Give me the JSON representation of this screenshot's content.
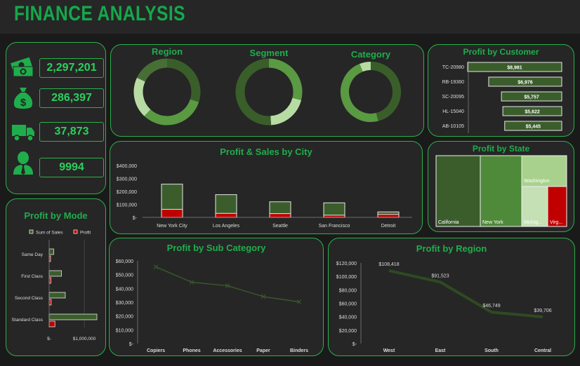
{
  "dashboard_title": "FINANCE ANALYSIS",
  "kpis": [
    {
      "icon": "money-bills-icon",
      "value": "2,297,201"
    },
    {
      "icon": "money-bag-icon",
      "value": "286,397"
    },
    {
      "icon": "delivery-truck-icon",
      "value": "37,873"
    },
    {
      "icon": "person-icon",
      "value": "9994"
    }
  ],
  "donuts": {
    "labels": {
      "region": "Region",
      "segment": "Segment",
      "category": "Category"
    },
    "colors": [
      "#3a5e2a",
      "#5a9a42",
      "#b7dba3",
      "#476f35"
    ]
  },
  "profit_by_customer": {
    "title": "Profit by Customer",
    "customers": [
      "TC-20980",
      "RB-19360",
      "SC-20095",
      "HL-15040",
      "AB-10105"
    ],
    "values": [
      8981,
      6976,
      5757,
      5622,
      5445
    ],
    "labels": [
      "$8,981",
      "$6,976",
      "$5,757",
      "$5,622",
      "$5,445"
    ]
  },
  "profit_by_mode": {
    "title": "Profit by Mode",
    "legend": [
      "Sum of Sales",
      "Profit"
    ],
    "modes": [
      "Same Day",
      "First Class",
      "Second Class",
      "Standard Class"
    ],
    "sales": [
      128000,
      351000,
      459000,
      1359000
    ],
    "profit": [
      16000,
      49000,
      57000,
      164000
    ],
    "ticks": [
      "$-",
      "$1,000,000"
    ]
  },
  "profit_sales_by_city": {
    "title": "Profit & Sales by City",
    "categories": [
      "New York City",
      "Los Angeles",
      "Seattle",
      "San Francisco",
      "Detroit"
    ],
    "sales": [
      256000,
      175000,
      120000,
      112000,
      42000
    ],
    "profit": [
      62000,
      31000,
      29000,
      17000,
      23000
    ],
    "yticks": [
      "$400,000",
      "$300,000",
      "$200,000",
      "$100,000",
      "$-"
    ]
  },
  "profit_by_state": {
    "title": "Profit by State",
    "states": [
      "California",
      "New York",
      "Washington",
      "Michigan",
      "Virginia"
    ],
    "labels": [
      "California",
      "New York",
      "Washington",
      "Michig...",
      "Virg..."
    ],
    "colors": [
      "#3b5d2c",
      "#4f8a3a",
      "#a9d18e",
      "#c5e0b4",
      "#c00000"
    ]
  },
  "profit_by_subcategory": {
    "title": "Profit by Sub Category",
    "categories": [
      "Copiers",
      "Phones",
      "Accessories",
      "Paper",
      "Binders"
    ],
    "values": [
      55618,
      44516,
      41937,
      34054,
      30222
    ],
    "yticks": [
      "$60,000",
      "$50,000",
      "$40,000",
      "$30,000",
      "$20,000",
      "$10,000",
      "$-"
    ]
  },
  "profit_by_region": {
    "title": "Profit by Region",
    "categories": [
      "West",
      "East",
      "South",
      "Central"
    ],
    "values": [
      108418,
      91523,
      46749,
      39706
    ],
    "labels": [
      "$108,418",
      "$91,523",
      "$46,749",
      "$39,706"
    ],
    "yticks": [
      "$120,000",
      "$100,000",
      "$80,000",
      "$60,000",
      "$40,000",
      "$20,000",
      "$-"
    ]
  },
  "chart_data": [
    {
      "type": "bar",
      "title": "Profit by Customer",
      "categories": [
        "TC-20980",
        "RB-19360",
        "SC-20095",
        "HL-15040",
        "AB-10105"
      ],
      "values": [
        8981,
        6976,
        5757,
        5622,
        5445
      ]
    },
    {
      "type": "bar",
      "title": "Profit by Mode",
      "categories": [
        "Same Day",
        "First Class",
        "Second Class",
        "Standard Class"
      ],
      "series": [
        {
          "name": "Sum of Sales",
          "values": [
            128000,
            351000,
            459000,
            1359000
          ]
        },
        {
          "name": "Profit",
          "values": [
            16000,
            49000,
            57000,
            164000
          ]
        }
      ]
    },
    {
      "type": "bar",
      "title": "Profit & Sales by City",
      "categories": [
        "New York City",
        "Los Angeles",
        "Seattle",
        "San Francisco",
        "Detroit"
      ],
      "series": [
        {
          "values": [
            256000,
            175000,
            120000,
            112000,
            42000
          ]
        },
        {
          "values": [
            62000,
            31000,
            29000,
            17000,
            23000
          ]
        }
      ],
      "ylim": [
        0,
        400000
      ]
    },
    {
      "type": "line",
      "title": "Profit by Sub Category",
      "categories": [
        "Copiers",
        "Phones",
        "Accessories",
        "Paper",
        "Binders"
      ],
      "values": [
        55618,
        44516,
        41937,
        34054,
        30222
      ],
      "ylim": [
        0,
        60000
      ]
    },
    {
      "type": "line",
      "title": "Profit by Region",
      "categories": [
        "West",
        "East",
        "South",
        "Central"
      ],
      "values": [
        108418,
        91523,
        46749,
        39706
      ],
      "ylim": [
        0,
        120000
      ]
    }
  ]
}
